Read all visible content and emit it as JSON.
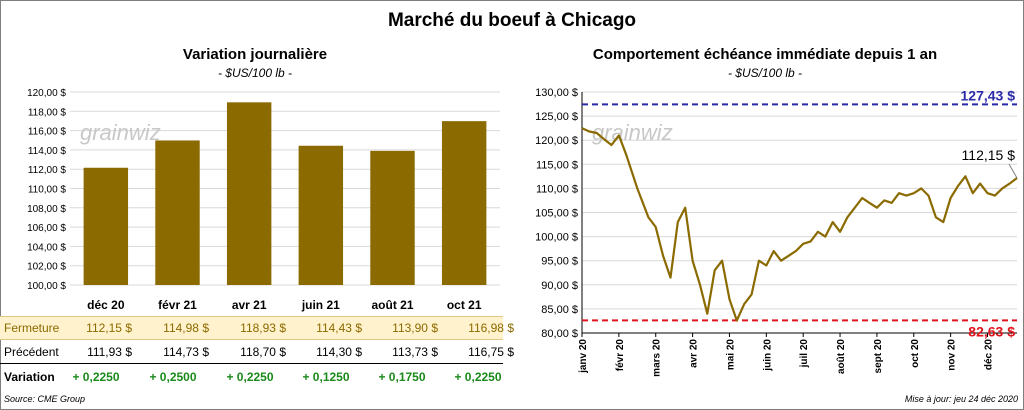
{
  "title": "Marché du boeuf à Chicago",
  "chart_data": [
    {
      "type": "bar",
      "title": "Variation  journalière",
      "subtitle": "- $US/100 lb -",
      "categories": [
        "déc 20",
        "févr 21",
        "avr 21",
        "juin 21",
        "août 21",
        "oct 21"
      ],
      "values": [
        112.15,
        114.98,
        118.93,
        114.43,
        113.9,
        116.98
      ],
      "ylim": [
        100,
        120
      ],
      "yticks": [
        "100,00 $",
        "102,00 $",
        "104,00 $",
        "106,00 $",
        "108,00 $",
        "110,00 $",
        "112,00 $",
        "114,00 $",
        "116,00 $",
        "118,00 $",
        "120,00 $"
      ],
      "bar_color": "#8b6a00"
    },
    {
      "type": "line",
      "title": "Comportement  échéance immédiate depuis 1 an",
      "subtitle": "- $US/100 lb -",
      "ylim": [
        80,
        130
      ],
      "yticks": [
        "80,00 $",
        "85,00 $",
        "90,00 $",
        "95,00 $",
        "100,00 $",
        "105,00 $",
        "110,00 $",
        "115,00 $",
        "120,00 $",
        "125,00 $",
        "130,00 $"
      ],
      "xticks": [
        "janv 20",
        "févr 20",
        "mars 20",
        "avr 20",
        "mai 20",
        "juin 20",
        "juil 20",
        "août 20",
        "sept 20",
        "oct 20",
        "nov 20",
        "déc 20"
      ],
      "x": [
        0,
        0.2,
        0.4,
        0.6,
        0.8,
        1.0,
        1.2,
        1.5,
        1.8,
        2.0,
        2.2,
        2.4,
        2.6,
        2.8,
        3.0,
        3.2,
        3.4,
        3.6,
        3.8,
        4.0,
        4.2,
        4.4,
        4.6,
        4.8,
        5.0,
        5.2,
        5.4,
        5.6,
        5.8,
        6.0,
        6.2,
        6.4,
        6.6,
        6.8,
        7.0,
        7.2,
        7.4,
        7.6,
        7.8,
        8.0,
        8.2,
        8.4,
        8.6,
        8.8,
        9.0,
        9.2,
        9.4,
        9.6,
        9.8,
        10.0,
        10.2,
        10.4,
        10.6,
        10.8,
        11.0,
        11.2,
        11.4,
        11.6,
        11.8
      ],
      "series": [
        {
          "values": [
            122.5,
            121.8,
            121.5,
            120.2,
            119,
            121,
            117,
            110,
            104,
            102,
            96,
            91.5,
            103,
            106,
            95,
            90,
            84,
            93,
            95,
            87,
            82.6,
            86,
            88,
            95,
            94,
            97,
            95,
            96,
            97,
            98.5,
            99,
            101,
            100,
            103,
            101,
            104,
            106,
            108,
            107,
            106,
            107.5,
            107,
            109,
            108.5,
            109,
            110,
            108.5,
            104,
            103,
            108,
            110.5,
            112.5,
            109,
            111,
            109,
            108.5,
            110,
            111,
            112.15
          ]
        }
      ],
      "line_color": "#8b6a00",
      "ref_high": {
        "value": 127.43,
        "label": "127,43 $",
        "color": "#2a2aa8"
      },
      "ref_low": {
        "value": 82.63,
        "label": "82,63 $",
        "color": "#e0141e"
      },
      "last_label": "112,15 $"
    }
  ],
  "table": {
    "rows": [
      {
        "label": "Fermeture",
        "cells": [
          "112,15  $",
          "114,98  $",
          "118,93  $",
          "114,43  $",
          "113,90  $",
          "116,98  $"
        ]
      },
      {
        "label": "Précédent",
        "cells": [
          "111,93  $",
          "114,73  $",
          "118,70  $",
          "114,30  $",
          "113,73  $",
          "116,75  $"
        ]
      },
      {
        "label": "Variation",
        "cells": [
          "+ 0,2250",
          "+ 0,2500",
          "+ 0,2250",
          "+ 0,1250",
          "+ 0,1750",
          "+ 0,2250"
        ]
      }
    ]
  },
  "watermark": "grainwiz",
  "source": "Source: CME Group",
  "updated": "Mise à jour: jeu 24 déc 2020"
}
